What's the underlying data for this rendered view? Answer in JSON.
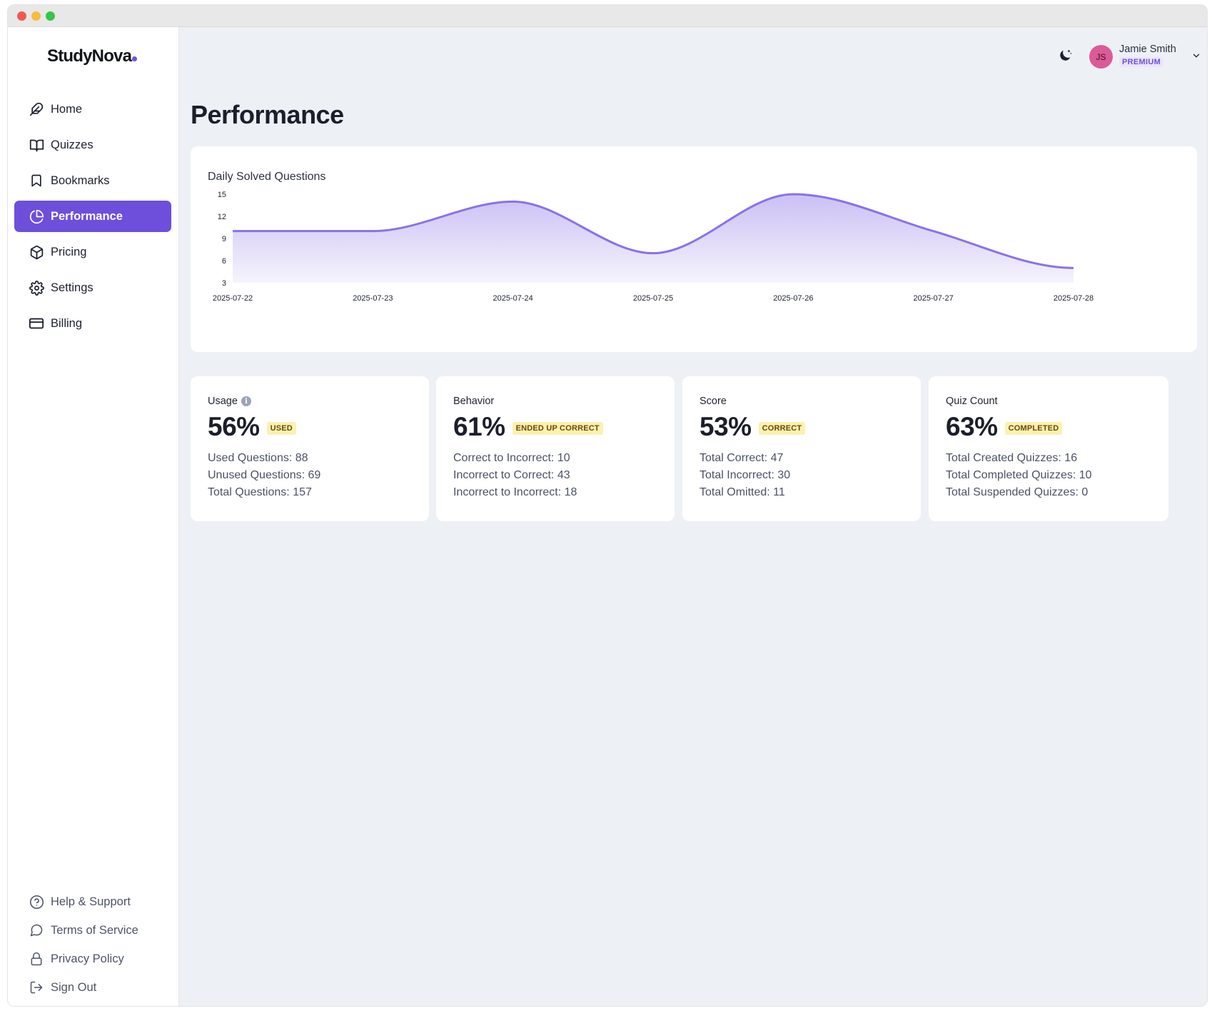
{
  "brand": {
    "name": "StudyNova"
  },
  "sidebar": {
    "items": [
      {
        "label": "Home",
        "icon": "feather-icon"
      },
      {
        "label": "Quizzes",
        "icon": "book-open-icon"
      },
      {
        "label": "Bookmarks",
        "icon": "bookmark-icon"
      },
      {
        "label": "Performance",
        "icon": "pie-chart-icon",
        "active": true
      },
      {
        "label": "Pricing",
        "icon": "box-icon"
      },
      {
        "label": "Settings",
        "icon": "gear-icon"
      },
      {
        "label": "Billing",
        "icon": "credit-card-icon"
      }
    ],
    "bottom_items": [
      {
        "label": "Help & Support",
        "icon": "help-circle-icon"
      },
      {
        "label": "Terms of Service",
        "icon": "message-circle-icon"
      },
      {
        "label": "Privacy Policy",
        "icon": "lock-icon"
      },
      {
        "label": "Sign Out",
        "icon": "sign-out-icon"
      }
    ]
  },
  "user": {
    "initials": "JS",
    "name": "Jamie Smith",
    "plan": "PREMIUM"
  },
  "page": {
    "title": "Performance"
  },
  "chart_data": {
    "type": "area",
    "title": "Daily Solved Questions",
    "x": [
      "2025-07-22",
      "2025-07-23",
      "2025-07-24",
      "2025-07-25",
      "2025-07-26",
      "2025-07-27",
      "2025-07-28"
    ],
    "values": [
      10,
      10,
      14,
      7,
      15,
      10,
      5
    ],
    "yticks": [
      3,
      6,
      9,
      12,
      15
    ],
    "ylim": [
      3,
      15
    ],
    "color": "#8a72e6",
    "grid": false,
    "legend": false
  },
  "stats": [
    {
      "label": "Usage",
      "has_info": true,
      "value": "56%",
      "badge": "USED",
      "lines": [
        "Used Questions: 88",
        "Unused Questions: 69",
        "Total Questions: 157"
      ]
    },
    {
      "label": "Behavior",
      "has_info": false,
      "value": "61%",
      "badge": "ENDED UP CORRECT",
      "lines": [
        "Correct to Incorrect: 10",
        "Incorrect to Correct: 43",
        "Incorrect to Incorrect: 18"
      ]
    },
    {
      "label": "Score",
      "has_info": false,
      "value": "53%",
      "badge": "CORRECT",
      "lines": [
        "Total Correct: 47",
        "Total Incorrect: 30",
        "Total Omitted: 11"
      ]
    },
    {
      "label": "Quiz Count",
      "has_info": false,
      "value": "63%",
      "badge": "COMPLETED",
      "lines": [
        "Total Created Quizzes: 16",
        "Total Completed Quizzes: 10",
        "Total Suspended Quizzes: 0"
      ]
    }
  ],
  "colors": {
    "accent": "#6d4fdc",
    "badge_bg": "#fbf1b0",
    "avatar": "#db5a97"
  }
}
